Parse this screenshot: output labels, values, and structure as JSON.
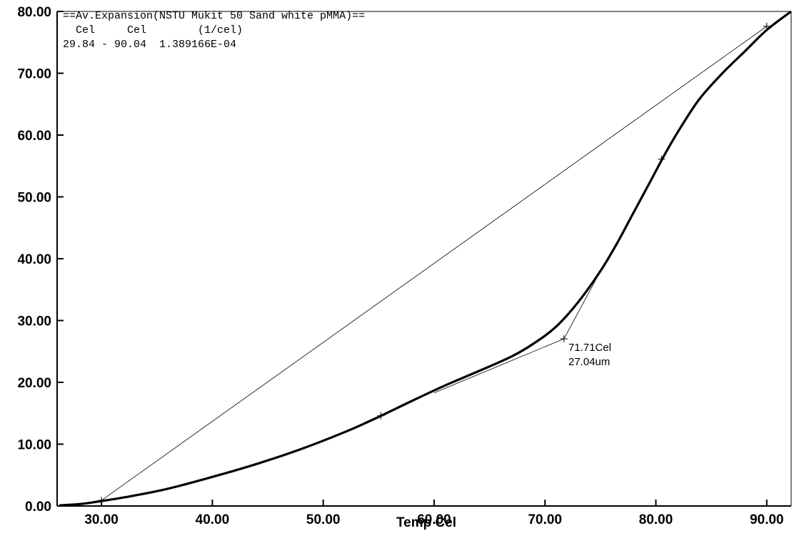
{
  "chart_data": {
    "type": "line",
    "xlabel": "Temp Cel",
    "ylabel": "",
    "xlim": [
      26.0,
      92.2
    ],
    "ylim": [
      0,
      80
    ],
    "x_ticks": [
      "30.00",
      "40.00",
      "50.00",
      "60.00",
      "70.00",
      "80.00",
      "90.00"
    ],
    "y_ticks": [
      "0.00",
      "10.00",
      "20.00",
      "30.00",
      "40.00",
      "50.00",
      "60.00",
      "70.00",
      "80.00"
    ],
    "header_lines": [
      "==Av.Expansion(NSTU Mukit 50 Sand white pMMA)==",
      "  Cel     Cel        (1/cel)",
      "29.84 - 90.04  1.389166E-04"
    ],
    "series": [
      {
        "values": [
          [
            26.2,
            0.1
          ],
          [
            28,
            0.3
          ],
          [
            30,
            0.8
          ],
          [
            33,
            1.7
          ],
          [
            36,
            2.8
          ],
          [
            40,
            4.7
          ],
          [
            44,
            6.8
          ],
          [
            48,
            9.2
          ],
          [
            52,
            12.0
          ],
          [
            55,
            14.4
          ],
          [
            58,
            17.0
          ],
          [
            61,
            19.5
          ],
          [
            64,
            21.8
          ],
          [
            67,
            24.2
          ],
          [
            69,
            26.3
          ],
          [
            71,
            29.0
          ],
          [
            73,
            33.0
          ],
          [
            75,
            38.0
          ],
          [
            76.5,
            42.5
          ],
          [
            78,
            47.5
          ],
          [
            79.5,
            52.5
          ],
          [
            81,
            57.5
          ],
          [
            82.5,
            62.0
          ],
          [
            84,
            66.0
          ],
          [
            86,
            70.0
          ],
          [
            88,
            73.5
          ],
          [
            90,
            77.0
          ],
          [
            92.2,
            80.0
          ]
        ]
      }
    ],
    "reference_lines": [
      {
        "from": [
          30.0,
          0.9
        ],
        "to": [
          90.0,
          77.6
        ]
      },
      {
        "from": [
          60.0,
          18.3
        ],
        "to": [
          71.71,
          27.04
        ]
      },
      {
        "from": [
          71.71,
          27.04
        ],
        "to": [
          75.0,
          38.0
        ]
      }
    ],
    "markers": [
      [
        30.0,
        0.9
      ],
      [
        55.2,
        14.6
      ],
      [
        71.71,
        27.04
      ],
      [
        80.5,
        56.1
      ],
      [
        90.0,
        77.6
      ]
    ],
    "annotation": {
      "x": 71.71,
      "y": 27.04,
      "lines": [
        "71.71Cel",
        "27.04um"
      ]
    }
  }
}
